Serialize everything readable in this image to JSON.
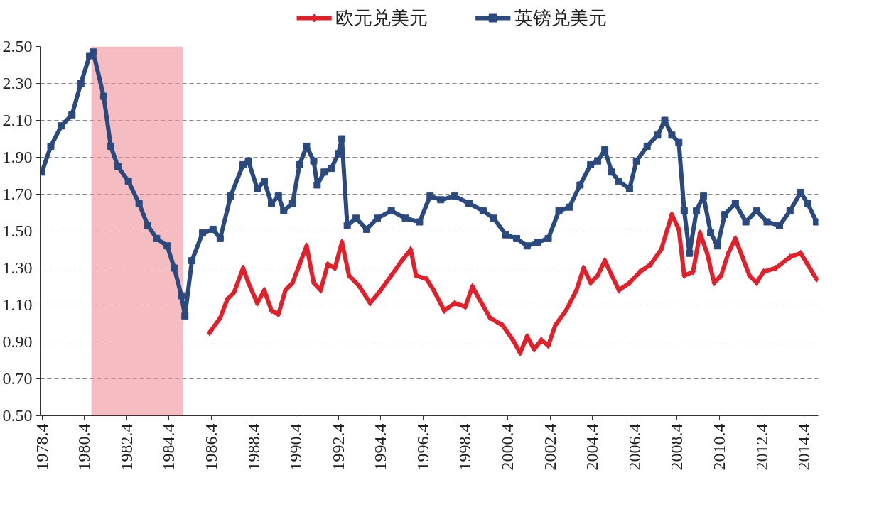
{
  "chart_data": {
    "type": "line",
    "legend": "top",
    "grid": "y",
    "line_style": "solid",
    "ylim": [
      0.5,
      2.5
    ],
    "yticks": [
      {
        "value": 0.5,
        "label": "0.50"
      },
      {
        "value": 0.7,
        "label": "0.70"
      },
      {
        "value": 0.9,
        "label": "0.90"
      },
      {
        "value": 1.1,
        "label": "1.10"
      },
      {
        "value": 1.3,
        "label": "1.30"
      },
      {
        "value": 1.5,
        "label": "1.50"
      },
      {
        "value": 1.7,
        "label": "1.70"
      },
      {
        "value": 1.9,
        "label": "1.90"
      },
      {
        "value": 2.1,
        "label": "2.10"
      },
      {
        "value": 2.3,
        "label": "2.30"
      },
      {
        "value": 2.5,
        "label": "2.50"
      }
    ],
    "xlim": [
      "1978-03",
      "2014-12"
    ],
    "xticks": [
      {
        "value": "1978-04",
        "label": "1978.4"
      },
      {
        "value": "1980-04",
        "label": "1980.4"
      },
      {
        "value": "1982-04",
        "label": "1982.4"
      },
      {
        "value": "1984-04",
        "label": "1984.4"
      },
      {
        "value": "1986-04",
        "label": "1986.4"
      },
      {
        "value": "1988-04",
        "label": "1988.4"
      },
      {
        "value": "1990-04",
        "label": "1990.4"
      },
      {
        "value": "1992-04",
        "label": "1992.4"
      },
      {
        "value": "1994-04",
        "label": "1994.4"
      },
      {
        "value": "1996-04",
        "label": "1996.4"
      },
      {
        "value": "1998-04",
        "label": "1998.4"
      },
      {
        "value": "2000-04",
        "label": "2000.4"
      },
      {
        "value": "2002-04",
        "label": "2002.4"
      },
      {
        "value": "2004-04",
        "label": "2004.4"
      },
      {
        "value": "2006-04",
        "label": "2006.4"
      },
      {
        "value": "2008-04",
        "label": "2008.4"
      },
      {
        "value": "2010-04",
        "label": "2010.4"
      },
      {
        "value": "2012-04",
        "label": "2012.4"
      },
      {
        "value": "2014-04",
        "label": "2014.4"
      }
    ],
    "bands": [
      {
        "axis": "x",
        "from": "1980-08",
        "to": "1984-12",
        "color": "#ef8f99"
      }
    ],
    "series": [
      {
        "name": "欧元兑美元",
        "color": "#e3202a",
        "marker": "diamond",
        "x": [
          "1986-03",
          "1986-09",
          "1987-01",
          "1987-05",
          "1987-10",
          "1988-01",
          "1988-06",
          "1988-10",
          "1989-02",
          "1989-06",
          "1989-10",
          "1990-02",
          "1990-06",
          "1990-10",
          "1991-02",
          "1991-06",
          "1991-10",
          "1992-02",
          "1992-06",
          "1992-10",
          "1993-04",
          "1993-10",
          "1994-04",
          "1994-10",
          "1995-04",
          "1995-09",
          "1995-12",
          "1996-06",
          "1996-10",
          "1997-04",
          "1997-10",
          "1998-04",
          "1998-08",
          "1998-12",
          "1999-06",
          "2000-01",
          "2000-07",
          "2000-11",
          "2001-03",
          "2001-07",
          "2001-11",
          "2002-03",
          "2002-07",
          "2003-01",
          "2003-07",
          "2003-11",
          "2004-03",
          "2004-07",
          "2004-11",
          "2005-03",
          "2005-07",
          "2006-01",
          "2006-07",
          "2007-01",
          "2007-07",
          "2008-01",
          "2008-05",
          "2008-08",
          "2009-01",
          "2009-05",
          "2009-09",
          "2010-01",
          "2010-05",
          "2010-09",
          "2011-01",
          "2011-05",
          "2011-09",
          "2012-01",
          "2012-05",
          "2012-12",
          "2013-08",
          "2014-02",
          "2014-06",
          "2014-11"
        ],
        "values": [
          0.95,
          1.03,
          1.13,
          1.17,
          1.3,
          1.22,
          1.11,
          1.18,
          1.07,
          1.05,
          1.18,
          1.22,
          1.32,
          1.42,
          1.22,
          1.18,
          1.32,
          1.3,
          1.44,
          1.26,
          1.2,
          1.11,
          1.18,
          1.26,
          1.34,
          1.4,
          1.26,
          1.24,
          1.18,
          1.07,
          1.11,
          1.09,
          1.2,
          1.13,
          1.03,
          0.99,
          0.91,
          0.84,
          0.93,
          0.86,
          0.91,
          0.88,
          0.99,
          1.07,
          1.18,
          1.3,
          1.22,
          1.26,
          1.34,
          1.26,
          1.18,
          1.22,
          1.28,
          1.32,
          1.4,
          1.59,
          1.51,
          1.26,
          1.28,
          1.49,
          1.38,
          1.22,
          1.26,
          1.38,
          1.46,
          1.36,
          1.26,
          1.22,
          1.28,
          1.3,
          1.36,
          1.38,
          1.32,
          1.24
        ]
      },
      {
        "name": "英镑兑美元",
        "color": "#2a4a7f",
        "marker": "square",
        "x": [
          "1978-04",
          "1978-09",
          "1979-03",
          "1979-09",
          "1980-02",
          "1980-07",
          "1980-09",
          "1981-03",
          "1981-07",
          "1981-11",
          "1982-05",
          "1982-11",
          "1983-04",
          "1983-09",
          "1984-03",
          "1984-07",
          "1984-11",
          "1985-01",
          "1985-05",
          "1985-11",
          "1986-05",
          "1986-09",
          "1987-03",
          "1987-10",
          "1988-01",
          "1988-06",
          "1988-10",
          "1989-02",
          "1989-06",
          "1989-09",
          "1990-02",
          "1990-06",
          "1990-10",
          "1991-02",
          "1991-04",
          "1991-08",
          "1991-12",
          "1992-04",
          "1992-06",
          "1992-09",
          "1993-02",
          "1993-08",
          "1994-02",
          "1994-10",
          "1995-06",
          "1996-02",
          "1996-08",
          "1997-02",
          "1997-10",
          "1998-06",
          "1999-02",
          "1999-08",
          "2000-03",
          "2000-09",
          "2001-03",
          "2001-09",
          "2002-03",
          "2002-09",
          "2003-03",
          "2003-09",
          "2004-03",
          "2004-07",
          "2004-11",
          "2005-03",
          "2005-07",
          "2006-01",
          "2006-05",
          "2006-11",
          "2007-05",
          "2007-09",
          "2008-01",
          "2008-05",
          "2008-08",
          "2008-11",
          "2009-03",
          "2009-07",
          "2009-11",
          "2010-03",
          "2010-07",
          "2011-01",
          "2011-07",
          "2012-01",
          "2012-07",
          "2013-02",
          "2013-08",
          "2014-02",
          "2014-06",
          "2014-11"
        ],
        "values": [
          1.82,
          1.96,
          2.07,
          2.13,
          2.3,
          2.45,
          2.47,
          2.23,
          1.96,
          1.85,
          1.77,
          1.65,
          1.53,
          1.46,
          1.42,
          1.3,
          1.15,
          1.04,
          1.34,
          1.49,
          1.51,
          1.46,
          1.69,
          1.86,
          1.88,
          1.73,
          1.77,
          1.65,
          1.69,
          1.61,
          1.65,
          1.86,
          1.96,
          1.88,
          1.75,
          1.82,
          1.84,
          1.92,
          2.0,
          1.53,
          1.57,
          1.51,
          1.57,
          1.61,
          1.57,
          1.55,
          1.69,
          1.67,
          1.69,
          1.65,
          1.61,
          1.57,
          1.48,
          1.46,
          1.42,
          1.44,
          1.46,
          1.61,
          1.63,
          1.75,
          1.86,
          1.88,
          1.94,
          1.82,
          1.77,
          1.73,
          1.88,
          1.96,
          2.02,
          2.1,
          2.02,
          1.98,
          1.61,
          1.38,
          1.61,
          1.69,
          1.49,
          1.42,
          1.59,
          1.65,
          1.55,
          1.61,
          1.55,
          1.53,
          1.61,
          1.71,
          1.65,
          1.55
        ]
      }
    ]
  }
}
